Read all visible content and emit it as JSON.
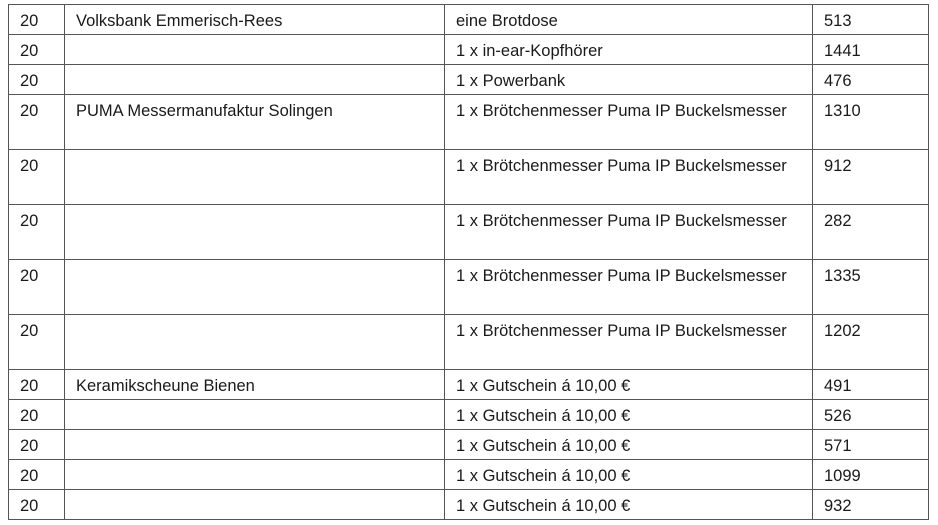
{
  "rows": [
    {
      "qty": "20",
      "donor": "Volksbank Emmerisch-Rees",
      "item": "eine Brotdose",
      "number": "513"
    },
    {
      "qty": "20",
      "donor": "",
      "item": "1 x in-ear-Kopfhörer",
      "number": "1441"
    },
    {
      "qty": "20",
      "donor": "",
      "item": "1 x Powerbank",
      "number": "476"
    },
    {
      "qty": "20",
      "donor": "PUMA Messermanufaktur Solingen",
      "item": "1 x Brötchenmesser Puma IP Buckelsmesser",
      "number": "1310"
    },
    {
      "qty": "20",
      "donor": "",
      "item": "1 x Brötchenmesser Puma IP Buckelsmesser",
      "number": "912"
    },
    {
      "qty": "20",
      "donor": "",
      "item": "1 x Brötchenmesser Puma IP Buckelsmesser",
      "number": "282"
    },
    {
      "qty": "20",
      "donor": "",
      "item": "1 x Brötchenmesser Puma IP Buckelsmesser",
      "number": "1335"
    },
    {
      "qty": "20",
      "donor": "",
      "item": "1 x Brötchenmesser Puma IP Buckelsmesser",
      "number": "1202"
    },
    {
      "qty": "20",
      "donor": "Keramikscheune Bienen",
      "item": "1 x Gutschein á 10,00 €",
      "number": "491"
    },
    {
      "qty": "20",
      "donor": "",
      "item": "1 x Gutschein á 10,00 €",
      "number": "526"
    },
    {
      "qty": "20",
      "donor": "",
      "item": "1 x Gutschein á 10,00 €",
      "number": "571"
    },
    {
      "qty": "20",
      "donor": "",
      "item": "1 x Gutschein á 10,00 €",
      "number": "1099"
    },
    {
      "qty": "20",
      "donor": "",
      "item": "1 x Gutschein á 10,00 €",
      "number": "932"
    }
  ]
}
